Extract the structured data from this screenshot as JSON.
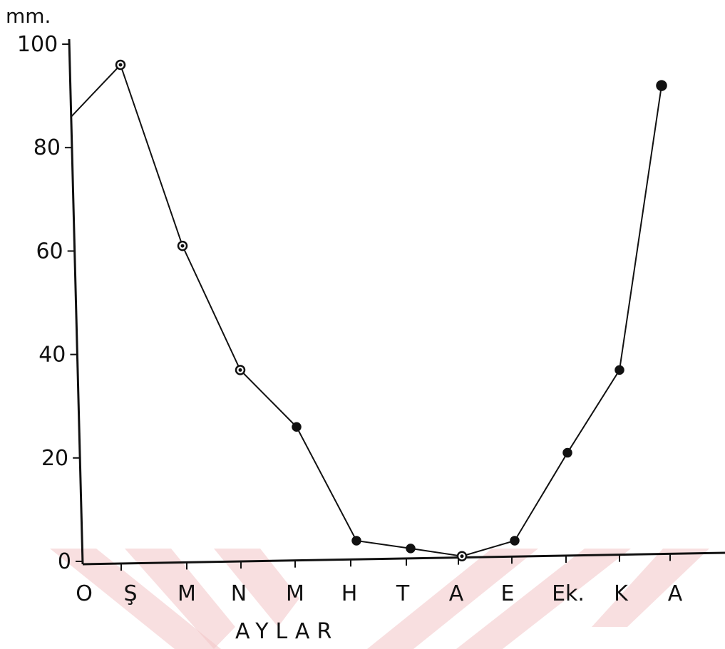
{
  "chart_data": {
    "type": "line",
    "title": "",
    "xlabel": "AYLAR",
    "ylabel": "",
    "y_unit": "mm.",
    "categories": [
      "O",
      "Ş",
      "M",
      "N",
      "M",
      "H",
      "T",
      "A",
      "E",
      "Ek.",
      "K",
      "A"
    ],
    "series": [
      {
        "values": [
          86,
          96,
          61,
          37,
          26,
          4,
          2.5,
          1,
          4,
          21,
          37,
          92
        ]
      }
    ],
    "ylim": [
      0,
      100
    ],
    "yticks": [
      0,
      20,
      40,
      60,
      80,
      100
    ],
    "grid": false,
    "legend": "none",
    "colors": {
      "line": "#111111",
      "marker": "#111111",
      "watermark": "#f2c4c7"
    }
  }
}
